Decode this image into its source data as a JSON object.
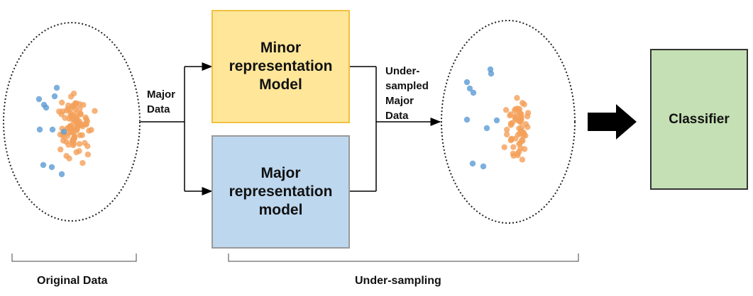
{
  "boxes": {
    "minor_model": "Minor\nrepresentation\nModel",
    "major_model": "Major\nrepresentation\nmodel",
    "classifier": "Classifier"
  },
  "labels": {
    "major_data": "Major\nData",
    "undersampled_major_data": "Under-\nsampled\nMajor\nData",
    "original_data": "Original Data",
    "under_sampling": "Under-sampling"
  },
  "colors": {
    "minority_points": "#5b9bd5",
    "majority_points": "#f4a05a",
    "minor_box": "#ffe699",
    "major_box": "#bdd7ee",
    "classifier_box": "#c5e0b4"
  }
}
